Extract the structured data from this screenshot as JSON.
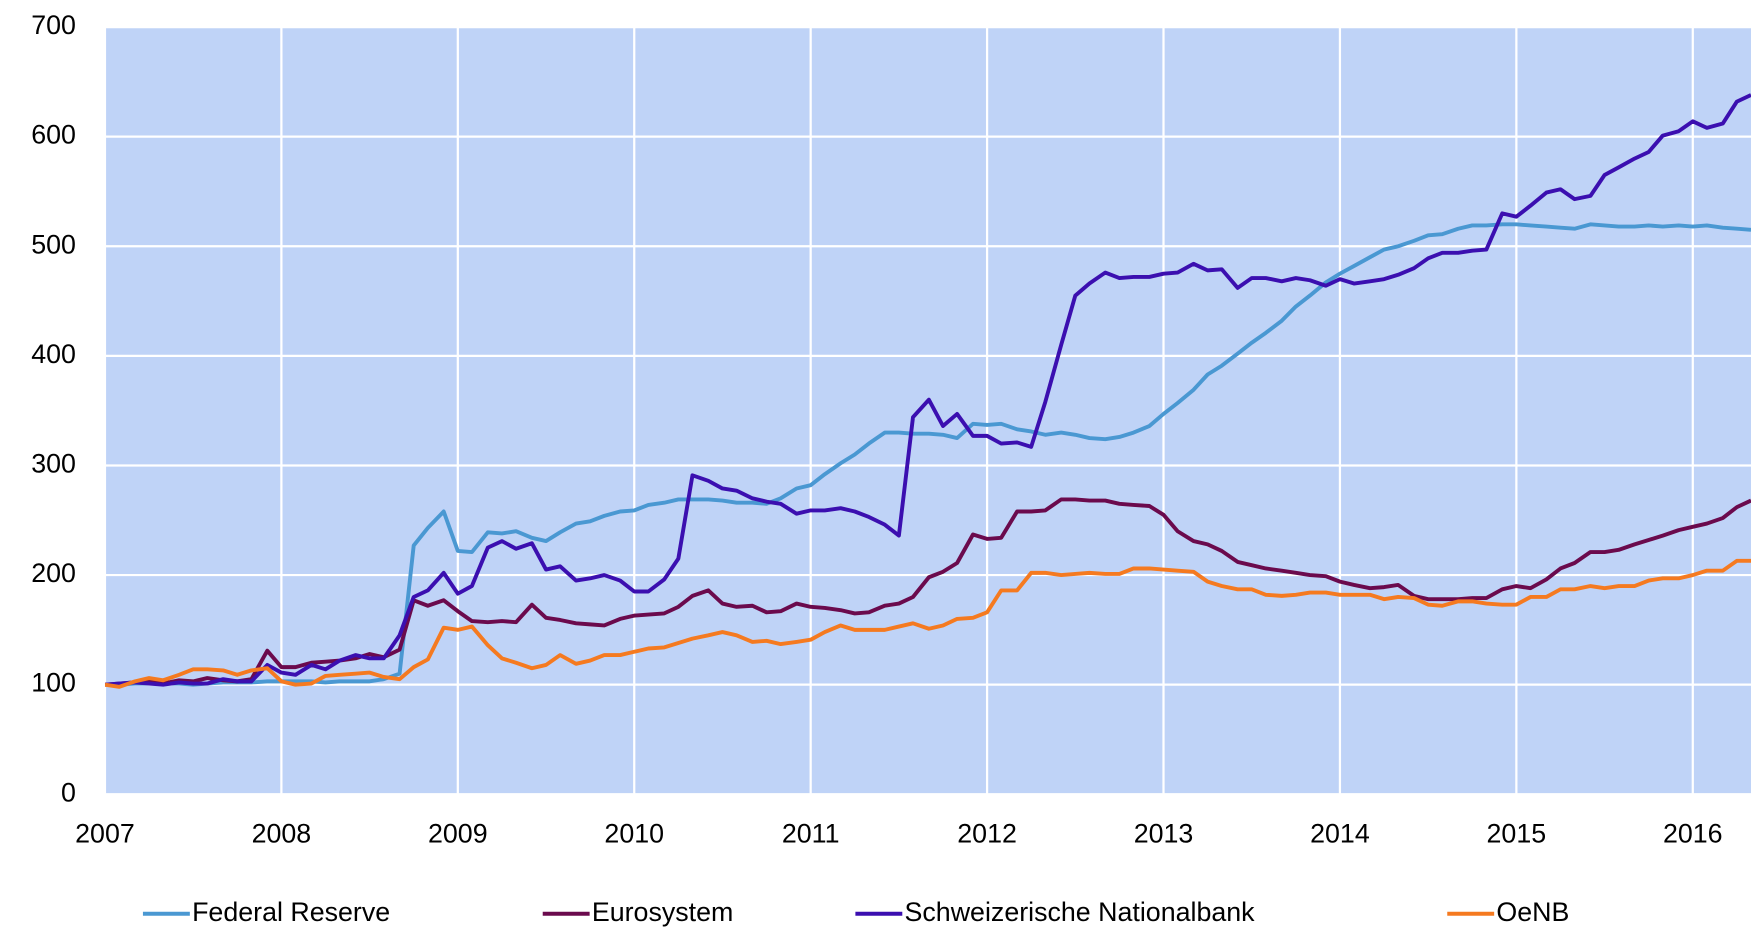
{
  "chart_data": {
    "type": "line",
    "x": [
      2007,
      2007.08,
      2007.17,
      2007.25,
      2007.33,
      2007.42,
      2007.5,
      2007.58,
      2007.67,
      2007.75,
      2007.83,
      2007.92,
      2008,
      2008.08,
      2008.17,
      2008.25,
      2008.33,
      2008.42,
      2008.5,
      2008.58,
      2008.67,
      2008.75,
      2008.83,
      2008.92,
      2009,
      2009.08,
      2009.17,
      2009.25,
      2009.33,
      2009.42,
      2009.5,
      2009.58,
      2009.67,
      2009.75,
      2009.83,
      2009.92,
      2010,
      2010.08,
      2010.17,
      2010.25,
      2010.33,
      2010.42,
      2010.5,
      2010.58,
      2010.67,
      2010.75,
      2010.83,
      2010.92,
      2011,
      2011.08,
      2011.17,
      2011.25,
      2011.33,
      2011.42,
      2011.5,
      2011.58,
      2011.67,
      2011.75,
      2011.83,
      2011.92,
      2012,
      2012.08,
      2012.17,
      2012.25,
      2012.33,
      2012.42,
      2012.5,
      2012.58,
      2012.67,
      2012.75,
      2012.83,
      2012.92,
      2013,
      2013.08,
      2013.17,
      2013.25,
      2013.33,
      2013.42,
      2013.5,
      2013.58,
      2013.67,
      2013.75,
      2013.83,
      2013.92,
      2014,
      2014.08,
      2014.17,
      2014.25,
      2014.33,
      2014.42,
      2014.5,
      2014.58,
      2014.67,
      2014.75,
      2014.83,
      2014.92,
      2015,
      2015.08,
      2015.17,
      2015.25,
      2015.33,
      2015.42,
      2015.5,
      2015.58,
      2015.67,
      2015.75,
      2015.83,
      2015.92,
      2016,
      2016.08,
      2016.17,
      2016.25,
      2016.33
    ],
    "series": [
      {
        "name": "Federal Reserve",
        "color": "#4a98d2",
        "values": [
          100,
          100,
          101,
          101,
          101,
          101,
          100,
          101,
          102,
          102,
          102,
          103,
          103,
          103,
          103,
          102,
          103,
          103,
          103,
          105,
          110,
          227,
          243,
          258,
          222,
          221,
          239,
          238,
          240,
          234,
          231,
          239,
          247,
          249,
          254,
          258,
          259,
          264,
          266,
          269,
          269,
          269,
          268,
          266,
          266,
          265,
          270,
          279,
          282,
          292,
          302,
          310,
          320,
          330,
          330,
          329,
          329,
          328,
          325,
          338,
          337,
          338,
          333,
          331,
          328,
          330,
          328,
          325,
          324,
          326,
          330,
          336,
          347,
          357,
          369,
          383,
          391,
          402,
          412,
          421,
          432,
          445,
          455,
          467,
          475,
          482,
          490,
          497,
          500,
          505,
          510,
          511,
          516,
          519,
          519,
          520,
          520,
          519,
          518,
          517,
          516,
          520,
          519,
          518,
          518,
          519,
          518,
          519,
          518,
          519,
          517,
          516,
          515
        ]
      },
      {
        "name": "Eurosystem",
        "color": "#6b0a4d",
        "values": [
          100,
          101,
          102,
          103,
          101,
          104,
          103,
          106,
          104,
          103,
          105,
          131,
          116,
          116,
          120,
          121,
          122,
          124,
          128,
          125,
          132,
          177,
          172,
          177,
          167,
          158,
          157,
          158,
          157,
          173,
          161,
          159,
          156,
          155,
          154,
          160,
          163,
          164,
          165,
          171,
          181,
          186,
          174,
          171,
          172,
          166,
          167,
          174,
          171,
          170,
          168,
          165,
          166,
          172,
          174,
          180,
          198,
          203,
          211,
          237,
          233,
          234,
          258,
          258,
          259,
          269,
          269,
          268,
          268,
          265,
          264,
          263,
          255,
          240,
          231,
          228,
          222,
          212,
          209,
          206,
          204,
          202,
          200,
          199,
          194,
          191,
          188,
          189,
          191,
          181,
          178,
          178,
          178,
          179,
          179,
          187,
          190,
          188,
          196,
          206,
          211,
          221,
          221,
          223,
          228,
          232,
          236,
          241,
          244,
          247,
          252,
          262,
          268
        ]
      },
      {
        "name": "Schweizerische Nationalbank",
        "color": "#3b0fb0",
        "values": [
          100,
          101,
          102,
          101,
          100,
          102,
          101,
          101,
          105,
          103,
          103,
          118,
          111,
          109,
          118,
          114,
          122,
          127,
          124,
          124,
          145,
          180,
          186,
          202,
          183,
          190,
          225,
          231,
          224,
          229,
          205,
          208,
          195,
          197,
          200,
          195,
          185,
          185,
          196,
          215,
          291,
          286,
          279,
          277,
          270,
          267,
          265,
          256,
          259,
          259,
          261,
          258,
          253,
          246,
          236,
          344,
          360,
          336,
          347,
          327,
          327,
          320,
          321,
          317,
          358,
          410,
          455,
          466,
          476,
          471,
          472,
          472,
          475,
          476,
          484,
          478,
          479,
          462,
          471,
          471,
          468,
          471,
          469,
          464,
          470,
          466,
          468,
          470,
          474,
          480,
          489,
          494,
          494,
          496,
          497,
          530,
          527,
          537,
          549,
          552,
          543,
          546,
          565,
          572,
          580,
          586,
          601,
          605,
          614,
          608,
          612,
          632,
          638
        ]
      },
      {
        "name": "OeNB",
        "color": "#f57a20",
        "values": [
          100,
          98,
          103,
          106,
          104,
          109,
          114,
          114,
          113,
          109,
          113,
          115,
          103,
          100,
          101,
          108,
          109,
          110,
          111,
          107,
          105,
          116,
          123,
          152,
          150,
          153,
          136,
          124,
          120,
          115,
          118,
          127,
          119,
          122,
          127,
          127,
          130,
          133,
          134,
          138,
          142,
          145,
          148,
          145,
          139,
          140,
          137,
          139,
          141,
          148,
          154,
          150,
          150,
          150,
          153,
          156,
          151,
          154,
          160,
          161,
          166,
          186,
          186,
          202,
          202,
          200,
          201,
          202,
          201,
          201,
          206,
          206,
          205,
          204,
          203,
          194,
          190,
          187,
          187,
          182,
          181,
          182,
          184,
          184,
          182,
          182,
          182,
          178,
          180,
          179,
          173,
          172,
          176,
          176,
          174,
          173,
          173,
          180,
          180,
          187,
          187,
          190,
          188,
          190,
          190,
          195,
          197,
          197,
          200,
          204,
          204,
          213,
          213
        ]
      }
    ],
    "xlim": [
      2007,
      2016.33
    ],
    "xticks": [
      2007,
      2008,
      2009,
      2010,
      2011,
      2012,
      2013,
      2014,
      2015,
      2016
    ],
    "ylim": [
      0,
      700
    ],
    "yticks": [
      0,
      100,
      200,
      300,
      400,
      500,
      600,
      700
    ],
    "grid": true,
    "plot_background": "#bfd3f7",
    "legend": "bottom"
  }
}
